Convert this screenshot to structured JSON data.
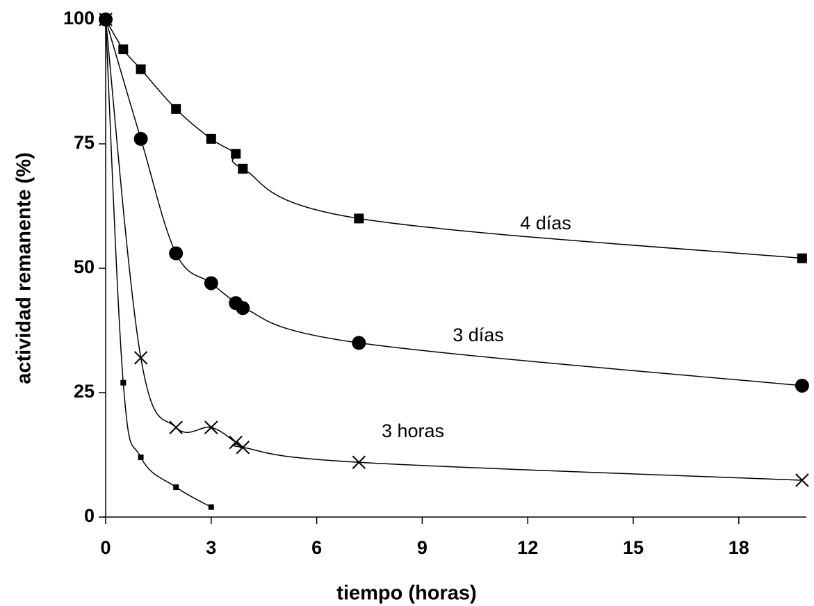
{
  "chart_data": {
    "type": "line",
    "xlabel": "tiempo (horas)",
    "ylabel": "actividad remanente (%)",
    "xlim": [
      0,
      20
    ],
    "ylim": [
      0,
      100
    ],
    "xticks": [
      0,
      3,
      6,
      9,
      12,
      15,
      18
    ],
    "yticks": [
      0,
      25,
      50,
      75,
      100
    ],
    "grid": false,
    "series": [
      {
        "name": "4 días",
        "color": "#000000",
        "marker": "square",
        "x": [
          0,
          0.5,
          1,
          2,
          3,
          3.7,
          3.9,
          7.2,
          19.8
        ],
        "values": [
          100,
          94,
          90,
          82,
          76,
          73,
          70,
          60,
          52
        ]
      },
      {
        "name": "3 días",
        "color": "#000000",
        "marker": "circle",
        "x": [
          0,
          1,
          2,
          3,
          3.7,
          3.9,
          7.2,
          19.8
        ],
        "values": [
          100,
          76,
          53,
          47,
          43,
          42,
          35,
          26.4
        ]
      },
      {
        "name": "3 horas",
        "color": "#000000",
        "marker": "cross",
        "x": [
          0,
          1,
          2,
          3,
          3.7,
          3.9,
          7.2,
          19.8
        ],
        "values": [
          100,
          32,
          18,
          18,
          15,
          14,
          11,
          7.4
        ]
      },
      {
        "color": "#000000",
        "marker": "small-square",
        "x": [
          0,
          0.5,
          1,
          2,
          3
        ],
        "values": [
          100,
          27,
          12,
          6,
          2
        ]
      }
    ]
  }
}
